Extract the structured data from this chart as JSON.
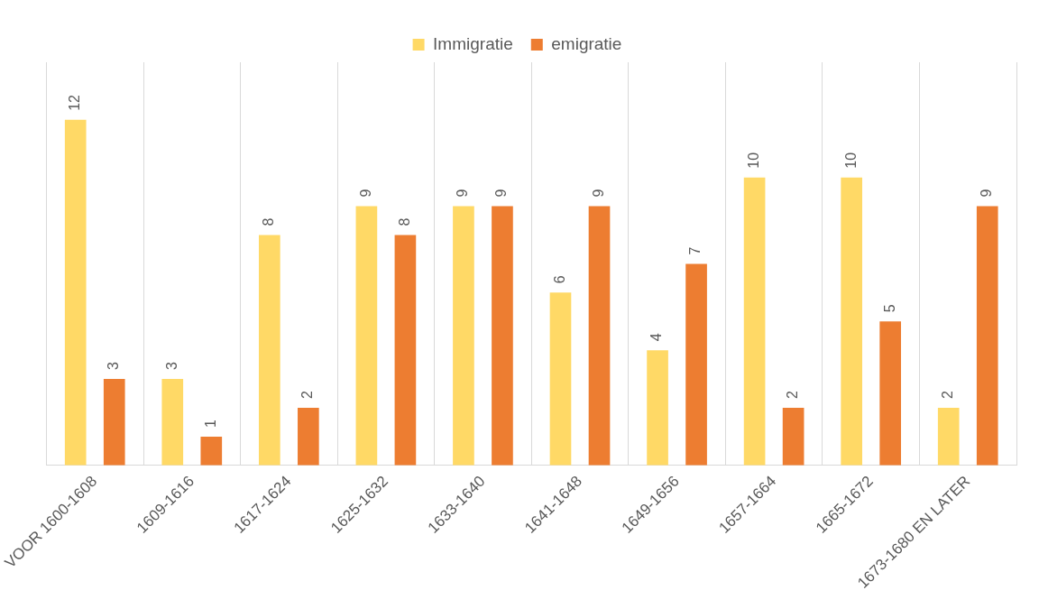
{
  "chart_data": {
    "type": "bar",
    "categories": [
      "VOOR 1600-1608",
      "1609-1616",
      "1617-1624",
      "1625-1632",
      "1633-1640",
      "1641-1648",
      "1649-1656",
      "1657-1664",
      "1665-1672",
      "1673-1680 EN LATER"
    ],
    "series": [
      {
        "name": "Immigratie",
        "color": "#ffd966",
        "values": [
          12,
          3,
          8,
          9,
          9,
          6,
          4,
          10,
          10,
          2
        ]
      },
      {
        "name": "emigratie",
        "color": "#ed7d31",
        "values": [
          3,
          1,
          2,
          8,
          9,
          9,
          7,
          2,
          5,
          9
        ]
      }
    ],
    "ylim": [
      0,
      14
    ],
    "tick_labels": "x",
    "grid": "x",
    "legend": "top",
    "data_labels": true
  }
}
